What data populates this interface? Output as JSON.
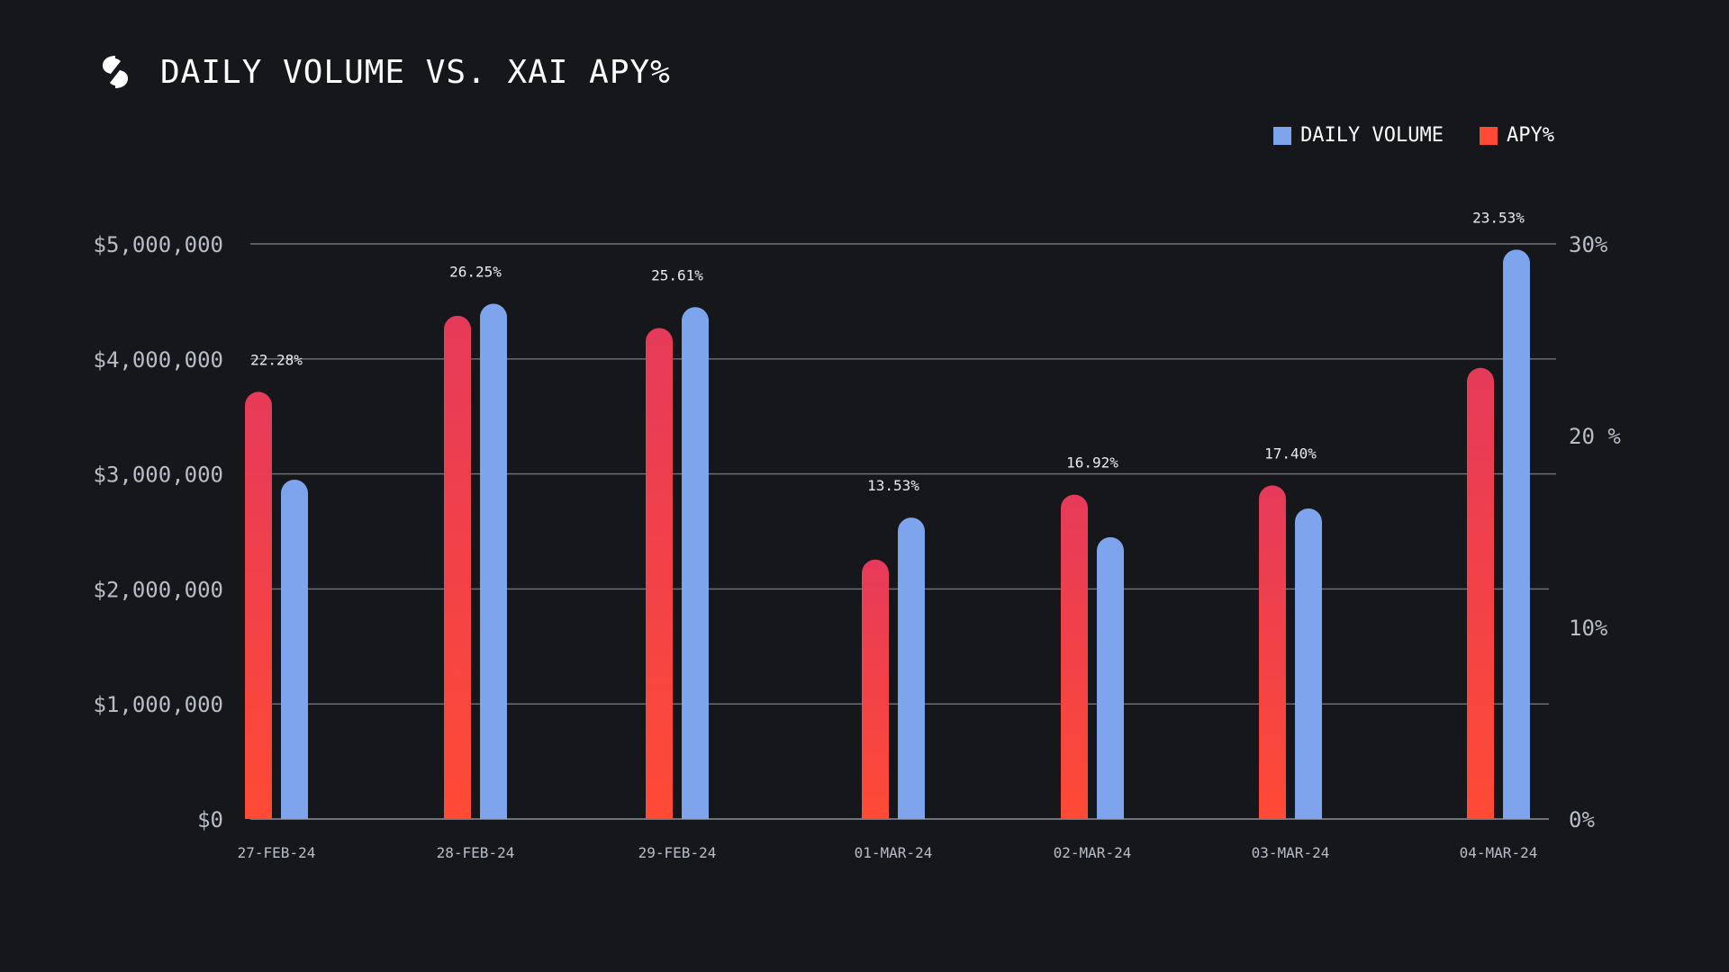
{
  "header": {
    "title": "DAILY VOLUME VS. XAI APY%"
  },
  "legend": {
    "volume_label": "DAILY VOLUME",
    "apy_label": "APY%"
  },
  "colors": {
    "background": "#16171b",
    "volume": "#7fa4ee",
    "apy_top": "#e63a5a",
    "apy_bottom": "#ff4a35",
    "grid": "#6f737b",
    "tick": "#b8bdc7"
  },
  "chart_data": {
    "type": "bar",
    "title": "DAILY VOLUME VS. XAI APY%",
    "categories": [
      "27-FEB-24",
      "28-FEB-24",
      "29-FEB-24",
      "01-MAR-24",
      "02-MAR-24",
      "03-MAR-24",
      "04-MAR-24"
    ],
    "series": [
      {
        "name": "APY%",
        "axis": "right",
        "values": [
          22.28,
          26.25,
          25.61,
          13.53,
          16.92,
          17.4,
          23.53
        ],
        "labels": [
          "22.28%",
          "26.25%",
          "25.61%",
          "13.53%",
          "16.92%",
          "17.40%",
          "23.53%"
        ]
      },
      {
        "name": "DAILY VOLUME",
        "axis": "left",
        "values": [
          2950000,
          4480000,
          4450000,
          2620000,
          2450000,
          2700000,
          4950000
        ]
      }
    ],
    "y_left": {
      "range": [
        0,
        5000000
      ],
      "ticks": [
        0,
        1000000,
        2000000,
        3000000,
        4000000,
        5000000
      ],
      "tick_labels": [
        "$0",
        "$1,000,000",
        "$2,000,000",
        "$3,000,000",
        "$4,000,000",
        "$5,000,000"
      ]
    },
    "y_right": {
      "range": [
        0,
        30
      ],
      "tick_values": [
        0,
        10,
        20,
        30
      ],
      "tick_labels": [
        "0%",
        "10%",
        "20 %",
        "30%"
      ]
    },
    "grid": true,
    "legend_position": "top-right"
  }
}
